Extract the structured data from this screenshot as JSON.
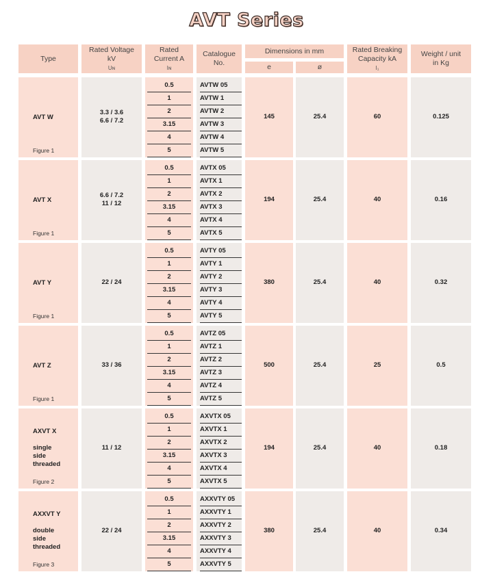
{
  "title": "AVT Series",
  "headers": {
    "type": "Type",
    "voltage": [
      "Rated Voltage",
      "kV",
      "Uɴ"
    ],
    "current": [
      "Rated",
      "Current A",
      "Iɴ"
    ],
    "catalogue": [
      "Catalogue",
      "No."
    ],
    "dimensions": "Dimensions in mm",
    "dim_e": "e",
    "dim_phi": "ø",
    "breaking": [
      "Rated Breaking",
      "Capacity kA",
      "I₁"
    ],
    "weight": [
      "Weight / unit",
      "in Kg"
    ]
  },
  "rows": [
    {
      "type": [
        "AVT W"
      ],
      "figure": "Figure 1",
      "voltage": [
        "3.3 / 3.6",
        "6.6 / 7.2"
      ],
      "currents": [
        "0.5",
        "1",
        "2",
        "3.15",
        "4",
        "5"
      ],
      "catalogue": [
        "AVTW 05",
        "AVTW 1",
        "AVTW 2",
        "AVTW 3",
        "AVTW 4",
        "AVTW 5"
      ],
      "e": "145",
      "phi": "25.4",
      "breaking": "60",
      "weight": "0.125"
    },
    {
      "type": [
        "AVT X"
      ],
      "figure": "Figure 1",
      "voltage": [
        "6.6 / 7.2",
        "11 / 12"
      ],
      "currents": [
        "0.5",
        "1",
        "2",
        "3.15",
        "4",
        "5"
      ],
      "catalogue": [
        "AVTX 05",
        "AVTX 1",
        "AVTX 2",
        "AVTX 3",
        "AVTX 4",
        "AVTX 5"
      ],
      "e": "194",
      "phi": "25.4",
      "breaking": "40",
      "weight": "0.16"
    },
    {
      "type": [
        "AVT Y"
      ],
      "figure": "Figure 1",
      "voltage": [
        "22 / 24"
      ],
      "currents": [
        "0.5",
        "1",
        "2",
        "3.15",
        "4",
        "5"
      ],
      "catalogue": [
        "AVTY 05",
        "AVTY 1",
        "AVTY 2",
        "AVTY 3",
        "AVTY 4",
        "AVTY 5"
      ],
      "e": "380",
      "phi": "25.4",
      "breaking": "40",
      "weight": "0.32"
    },
    {
      "type": [
        "AVT Z"
      ],
      "figure": "Figure 1",
      "voltage": [
        "33 / 36"
      ],
      "currents": [
        "0.5",
        "1",
        "2",
        "3.15",
        "4",
        "5"
      ],
      "catalogue": [
        "AVTZ 05",
        "AVTZ 1",
        "AVTZ 2",
        "AVTZ 3",
        "AVTZ 4",
        "AVTZ 5"
      ],
      "e": "500",
      "phi": "25.4",
      "breaking": "25",
      "weight": "0.5"
    },
    {
      "type": [
        "AXVT X",
        "",
        "single",
        "side",
        "threaded"
      ],
      "figure": "Figure 2",
      "voltage": [
        "11 / 12"
      ],
      "currents": [
        "0.5",
        "1",
        "2",
        "3.15",
        "4",
        "5"
      ],
      "catalogue": [
        "AXVTX 05",
        "AXVTX 1",
        "AXVTX 2",
        "AXVTX 3",
        "AXVTX 4",
        "AXVTX 5"
      ],
      "e": "194",
      "phi": "25.4",
      "breaking": "40",
      "weight": "0.18"
    },
    {
      "type": [
        "AXXVT Y",
        "",
        "double",
        "side",
        "threaded"
      ],
      "figure": "Figure 3",
      "voltage": [
        "22 / 24"
      ],
      "currents": [
        "0.5",
        "1",
        "2",
        "3.15",
        "4",
        "5"
      ],
      "catalogue": [
        "AXXVTY 05",
        "AXXVTY 1",
        "AXXVTY 2",
        "AXXVTY 3",
        "AXXVTY 4",
        "AXXVTY 5"
      ],
      "e": "380",
      "phi": "25.4",
      "breaking": "40",
      "weight": "0.34"
    }
  ]
}
